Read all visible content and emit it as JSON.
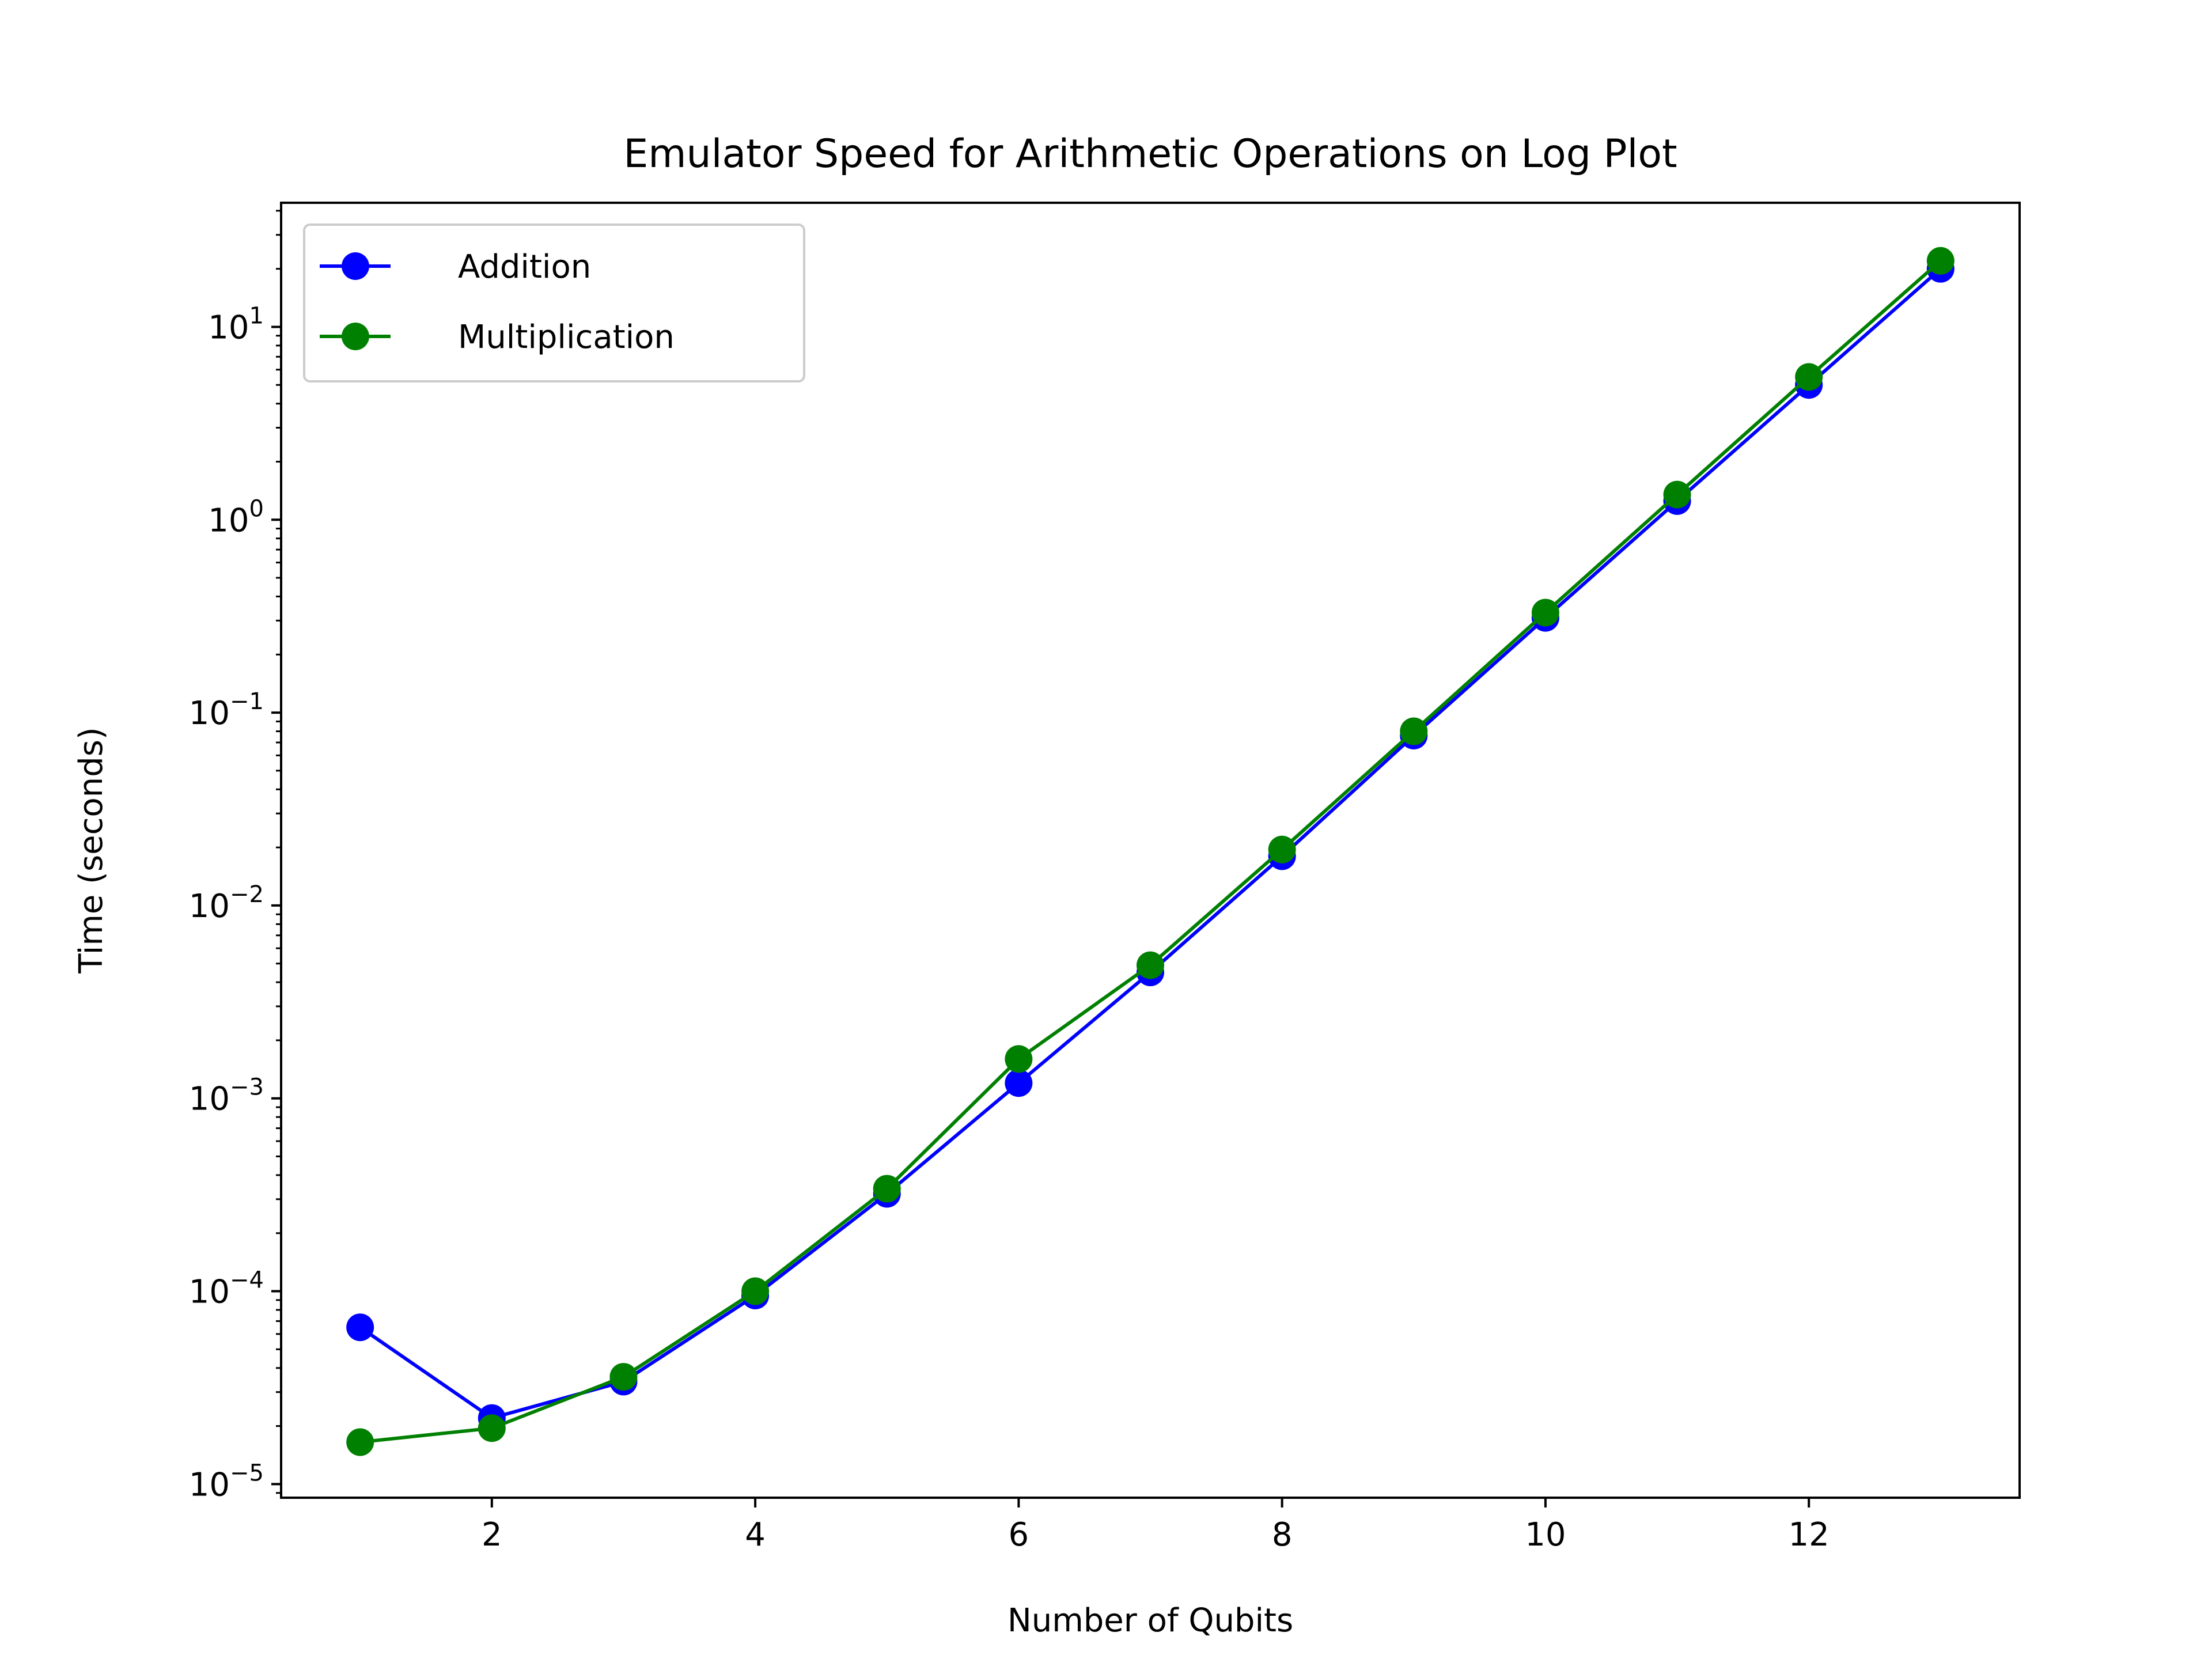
{
  "chart_data": {
    "type": "line",
    "title": "Emulator Speed for Arithmetic Operations on Log Plot",
    "xlabel": "Number of Qubits",
    "ylabel": "Time (seconds)",
    "xscale": "linear",
    "yscale": "log",
    "xlim": [
      0.4,
      13.6
    ],
    "ylim": [
      8.5e-06,
      44
    ],
    "xticks": [
      2,
      4,
      6,
      8,
      10,
      12
    ],
    "xtick_labels": [
      "2",
      "4",
      "6",
      "8",
      "10",
      "12"
    ],
    "ytick_exponents": [
      -5,
      -4,
      -3,
      -2,
      -1,
      0,
      1
    ],
    "ytick_base": "10",
    "ytick_labels": [
      "10^-5",
      "10^-4",
      "10^-3",
      "10^-2",
      "10^-1",
      "10^0",
      "10^1"
    ],
    "grid": false,
    "legend_position": "upper-left",
    "series": [
      {
        "name": "Addition",
        "color": "#0000ff",
        "marker": "circle",
        "x": [
          1,
          2,
          3,
          4,
          5,
          6,
          7,
          8,
          9,
          10,
          11,
          12,
          13
        ],
        "y": [
          6.5e-05,
          2.2e-05,
          3.4e-05,
          9.5e-05,
          0.00032,
          0.0012,
          0.0045,
          0.018,
          0.076,
          0.31,
          1.25,
          5.0,
          20.0
        ]
      },
      {
        "name": "Multiplication",
        "color": "#008000",
        "marker": "circle",
        "x": [
          1,
          2,
          3,
          4,
          5,
          6,
          7,
          8,
          9,
          10,
          11,
          12,
          13
        ],
        "y": [
          1.65e-05,
          1.95e-05,
          3.6e-05,
          0.0001,
          0.00034,
          0.0016,
          0.0049,
          0.0195,
          0.08,
          0.33,
          1.35,
          5.5,
          22.0
        ]
      }
    ]
  }
}
